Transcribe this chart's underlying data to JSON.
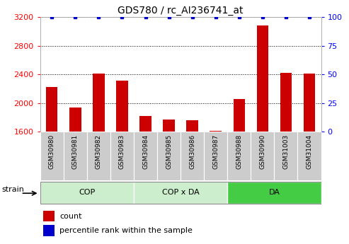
{
  "title": "GDS780 / rc_AI236741_at",
  "samples": [
    "GSM30980",
    "GSM30981",
    "GSM30982",
    "GSM30983",
    "GSM30984",
    "GSM30985",
    "GSM30986",
    "GSM30987",
    "GSM30988",
    "GSM30990",
    "GSM31003",
    "GSM31004"
  ],
  "counts": [
    2220,
    1940,
    2410,
    2310,
    1820,
    1770,
    1760,
    1610,
    2060,
    3080,
    2420,
    2410
  ],
  "percentile_ranks": [
    100,
    100,
    100,
    100,
    100,
    100,
    100,
    100,
    100,
    100,
    100,
    100
  ],
  "ylim_left": [
    1600,
    3200
  ],
  "ylim_right": [
    0,
    100
  ],
  "yticks_left": [
    1600,
    2000,
    2400,
    2800,
    3200
  ],
  "yticks_right": [
    0,
    25,
    50,
    75,
    100
  ],
  "bar_color": "#cc0000",
  "dot_color": "#0000cc",
  "groups": [
    {
      "label": "COP",
      "start": 0,
      "end": 3,
      "color": "#cceecc"
    },
    {
      "label": "COP x DA",
      "start": 4,
      "end": 7,
      "color": "#cceecc"
    },
    {
      "label": "DA",
      "start": 8,
      "end": 11,
      "color": "#44cc44"
    }
  ],
  "strain_label": "strain",
  "legend_count_label": "count",
  "legend_pct_label": "percentile rank within the sample",
  "plot_bg_color": "#ffffff",
  "xtick_bg_color": "#cccccc",
  "title_fontsize": 10,
  "tick_fontsize": 8,
  "label_fontsize": 8
}
